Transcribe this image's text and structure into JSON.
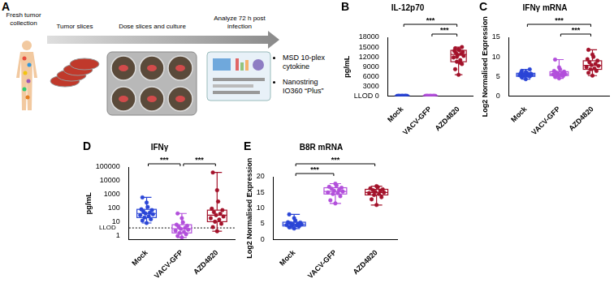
{
  "workflow": {
    "panel": "A",
    "steps": [
      "Fresh tumor collection",
      "Tumor slices",
      "Dose slices and culture",
      "Analyze 72 h post infection"
    ],
    "outputs": [
      "MSD 10-plex cytokine",
      "Nanostring IO360 “Plus”"
    ]
  },
  "chart_data": [
    {
      "panel": "B",
      "type": "box",
      "title": "IL-12p70",
      "y_label": "pg/mL",
      "grid": false,
      "categories": [
        "Mock",
        "VACV-GFP",
        "AZD4820"
      ],
      "colors": [
        "#2a45d6",
        "#b24fdb",
        "#a3122a"
      ],
      "ylim": [
        0,
        18000
      ],
      "yticks": [
        {
          "value": 0,
          "label": "LLOD 0"
        },
        3000,
        6000,
        9000,
        12000,
        15000,
        18000
      ],
      "box_stats": [
        {
          "min": 0,
          "q1": 0,
          "median": 0,
          "q3": 0,
          "max": 0
        },
        {
          "min": 0,
          "q1": 0,
          "median": 0,
          "q3": 0,
          "max": 0
        },
        {
          "min": 6500,
          "q1": 10500,
          "median": 12750,
          "q3": 14000,
          "max": 15000
        }
      ],
      "values": [
        [
          0,
          0,
          0,
          0,
          0,
          0,
          0,
          0,
          0,
          0,
          0,
          0,
          0,
          0,
          0,
          0
        ],
        [
          0,
          0,
          0,
          0,
          0,
          0,
          0,
          0,
          0,
          0,
          0,
          0,
          0,
          0,
          0,
          0
        ],
        [
          6500,
          8200,
          9800,
          10500,
          11000,
          11800,
          12300,
          12600,
          12900,
          13200,
          13500,
          13800,
          14000,
          14300,
          14600,
          15000,
          12000,
          10200
        ]
      ],
      "significance": [
        {
          "from": "VACV-GFP",
          "to": "AZD4820",
          "label": "***"
        },
        {
          "from": "Mock",
          "to": "AZD4820",
          "label": "***"
        }
      ]
    },
    {
      "panel": "C",
      "type": "box",
      "title": "IFNγ mRNA",
      "y_label": "Log2 Normalised Expression",
      "grid": false,
      "categories": [
        "Mock",
        "VACV-GFP",
        "AZD4820"
      ],
      "colors": [
        "#2a45d6",
        "#b24fdb",
        "#a3122a"
      ],
      "ylim": [
        0,
        15
      ],
      "yticks": [
        0,
        5,
        10,
        15
      ],
      "box_stats": [
        {
          "min": 4.3,
          "q1": 5.0,
          "median": 5.4,
          "q3": 5.8,
          "max": 6.8
        },
        {
          "min": 4.5,
          "q1": 5.2,
          "median": 5.6,
          "q3": 6.2,
          "max": 9.3
        },
        {
          "min": 5.2,
          "q1": 6.8,
          "median": 7.8,
          "q3": 9.0,
          "max": 11.8
        }
      ],
      "values": [
        [
          4.3,
          4.8,
          5.0,
          5.1,
          5.2,
          5.3,
          5.4,
          5.4,
          5.5,
          5.6,
          5.7,
          5.8,
          5.9,
          6.1,
          6.4,
          6.8
        ],
        [
          4.5,
          4.9,
          5.1,
          5.2,
          5.3,
          5.5,
          5.6,
          5.7,
          5.9,
          6.0,
          6.2,
          6.4,
          6.8,
          7.3,
          9.3
        ],
        [
          5.2,
          5.9,
          6.4,
          6.8,
          7.0,
          7.4,
          7.7,
          7.9,
          8.2,
          8.6,
          9.0,
          9.4,
          10.0,
          10.6,
          11.8
        ]
      ],
      "significance": [
        {
          "from": "VACV-GFP",
          "to": "AZD4820",
          "label": "***"
        },
        {
          "from": "Mock",
          "to": "AZD4820",
          "label": "***"
        }
      ]
    },
    {
      "panel": "D",
      "type": "box",
      "title": "IFNγ",
      "y_label": "pg/mL",
      "grid": false,
      "log": "y",
      "categories": [
        "Mock",
        "VACV-GFP",
        "AZD4820"
      ],
      "colors": [
        "#2a45d6",
        "#b24fdb",
        "#a3122a"
      ],
      "ylim": [
        0.5,
        100000
      ],
      "yticks": [
        1,
        10,
        100,
        1000,
        10000,
        100000
      ],
      "reference_line": {
        "value": 3.5,
        "label": "LLOD",
        "line_style": "dotted"
      },
      "box_stats": [
        {
          "min": 8,
          "q1": 20,
          "median": 40,
          "q3": 80,
          "max": 600
        },
        {
          "min": 0.7,
          "q1": 1.5,
          "median": 3,
          "q3": 6,
          "max": 40
        },
        {
          "min": 2,
          "q1": 10,
          "median": 30,
          "q3": 70,
          "max": 40000
        }
      ],
      "values": [
        [
          8,
          12,
          15,
          20,
          25,
          30,
          35,
          40,
          45,
          55,
          70,
          80,
          120,
          250,
          600
        ],
        [
          0.7,
          0.9,
          1.2,
          1.5,
          1.8,
          2.2,
          2.6,
          3,
          3.5,
          4.2,
          5,
          6,
          9,
          18,
          40
        ],
        [
          2,
          4,
          7,
          10,
          14,
          18,
          24,
          30,
          38,
          50,
          70,
          90,
          300,
          2000,
          40000
        ]
      ],
      "significance": [
        {
          "from": "Mock",
          "to": "VACV-GFP",
          "label": "***"
        },
        {
          "from": "VACV-GFP",
          "to": "AZD4820",
          "label": "***"
        }
      ]
    },
    {
      "panel": "E",
      "type": "box",
      "title": "B8R mRNA",
      "y_label": "Log2 Normalised Expression",
      "grid": false,
      "categories": [
        "Mock",
        "VACV-GFP",
        "AZD4820"
      ],
      "colors": [
        "#2a45d6",
        "#b24fdb",
        "#a3122a"
      ],
      "ylim": [
        0,
        20
      ],
      "yticks": [
        0,
        5,
        10,
        15,
        20
      ],
      "box_stats": [
        {
          "min": 3.5,
          "q1": 4.3,
          "median": 4.8,
          "q3": 5.5,
          "max": 8.0
        },
        {
          "min": 11.5,
          "q1": 14.5,
          "median": 15.3,
          "q3": 16.5,
          "max": 17.8
        },
        {
          "min": 11,
          "q1": 14.2,
          "median": 15,
          "q3": 16,
          "max": 17
        }
      ],
      "values": [
        [
          3.5,
          3.9,
          4.2,
          4.3,
          4.5,
          4.6,
          4.8,
          4.9,
          5.0,
          5.2,
          5.4,
          5.5,
          6.0,
          6.8,
          8.0
        ],
        [
          11.5,
          12.5,
          13.8,
          14.5,
          14.8,
          15.0,
          15.3,
          15.5,
          15.8,
          16.2,
          16.5,
          16.8,
          17.2,
          17.8
        ],
        [
          11,
          12.8,
          13.5,
          14.2,
          14.5,
          14.8,
          15,
          15.2,
          15.5,
          15.7,
          16,
          16.3,
          16.7,
          17
        ]
      ],
      "significance": [
        {
          "from": "Mock",
          "to": "VACV-GFP",
          "label": "***"
        },
        {
          "from": "Mock",
          "to": "AZD4820",
          "label": "***"
        }
      ]
    }
  ]
}
